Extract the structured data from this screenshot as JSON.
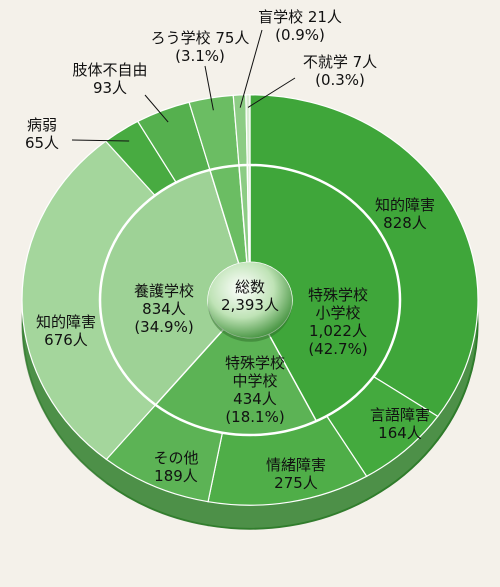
{
  "chart_data": {
    "type": "pie",
    "center": {
      "label": "総数",
      "value": "2,393人"
    },
    "inner_ring": [
      {
        "name": "特殊学校 小学校",
        "line1": "特殊学校",
        "line2": "小学校",
        "line3": "1,022人",
        "line4": "(42.7%)",
        "value": 1022,
        "color": "#3fa63a"
      },
      {
        "name": "特殊学校 中学校",
        "line1": "特殊学校",
        "line2": "中学校",
        "line3": "434人",
        "line4": "(18.1%)",
        "value": 434,
        "color": "#5cb355"
      },
      {
        "name": "養護学校",
        "line1": "養護学校",
        "line2": "834人",
        "line3": "(34.9%)",
        "value": 834,
        "color": "#9ed296"
      },
      {
        "name": "ろう学校",
        "line1": "ろう学校 75人",
        "line2": "(3.1%)",
        "value": 75,
        "color": "#6bbd63"
      },
      {
        "name": "盲学校",
        "line1": "盲学校 21人",
        "line2": "(0.9%)",
        "value": 21,
        "color": "#8ccc84"
      },
      {
        "name": "不就学",
        "line1": "不就学 7人",
        "line2": "(0.3%)",
        "value": 7,
        "color": "#d8ecd2"
      }
    ],
    "outer_ring": [
      {
        "name": "知的障害",
        "line1": "知的障害",
        "line2": "828人",
        "value": 828,
        "color": "#3fa63a"
      },
      {
        "name": "言語障害",
        "line1": "言語障害",
        "line2": "164人",
        "value": 164,
        "color": "#44aa3e"
      },
      {
        "name": "情緒障害",
        "line1": "情緒障害",
        "line2": "275人",
        "value": 275,
        "color": "#4fae48"
      },
      {
        "name": "その他",
        "line1": "その他",
        "line2": "189人",
        "value": 189,
        "color": "#5cb355"
      },
      {
        "name": "知的障害",
        "line1": "知的障害",
        "line2": "676人",
        "value": 676,
        "color": "#a4d69c"
      },
      {
        "name": "病弱",
        "line1": "病弱",
        "line2": "65人",
        "value": 65,
        "color": "#48ab41"
      },
      {
        "name": "肢体不自由",
        "line1": "肢体不自由",
        "line2": "93人",
        "value": 93,
        "color": "#55b04e"
      },
      {
        "name": "ろう学校",
        "value": 75,
        "color": "#6bbd63"
      },
      {
        "name": "盲学校",
        "value": 21,
        "color": "#8ccc84"
      },
      {
        "name": "不就学",
        "value": 7,
        "color": "#d8ecd2"
      }
    ]
  }
}
